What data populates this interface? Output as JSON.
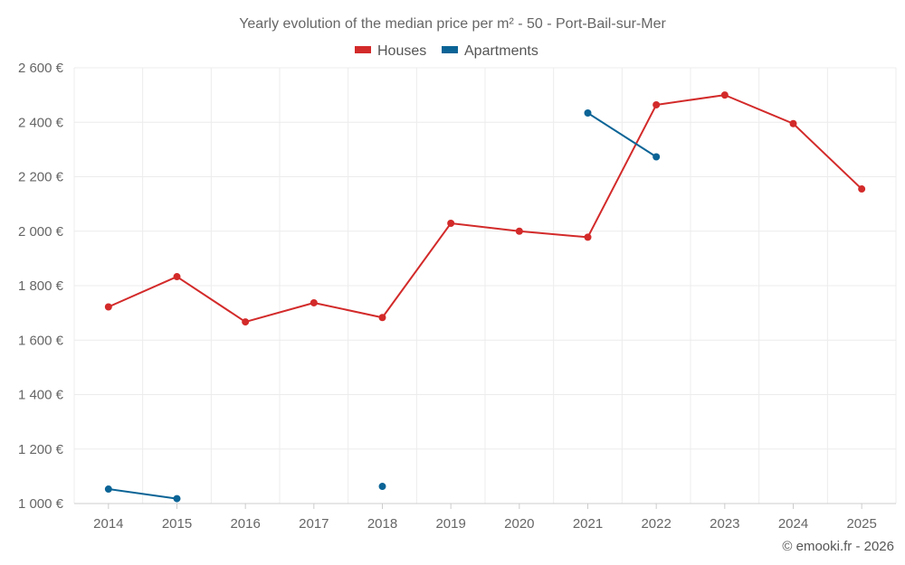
{
  "chart_data": {
    "type": "line",
    "title": "Yearly evolution of the median price per m² - 50 - Port-Bail-sur-Mer",
    "categories": [
      "2014",
      "2015",
      "2016",
      "2017",
      "2018",
      "2019",
      "2020",
      "2021",
      "2022",
      "2023",
      "2024",
      "2025"
    ],
    "ylim": [
      1000,
      2600
    ],
    "yticks": [
      1000,
      1200,
      1400,
      1600,
      1800,
      2000,
      2200,
      2400,
      2600
    ],
    "ytick_labels": [
      "1 000 €",
      "1 200 €",
      "1 400 €",
      "1 600 €",
      "1 800 €",
      "2 000 €",
      "2 200 €",
      "2 400 €",
      "2 600 €"
    ],
    "xlabel": "",
    "ylabel": "",
    "grid": true,
    "legend_position": "top-center",
    "series": [
      {
        "name": "Houses",
        "color": "#d32a2a",
        "values": [
          1722,
          1833,
          1667,
          1737,
          1683,
          2029,
          2000,
          1978,
          2464,
          2500,
          2395,
          2155
        ]
      },
      {
        "name": "Apartments",
        "color": "#0b6496",
        "values": [
          1053,
          1018,
          null,
          null,
          1063,
          null,
          null,
          2434,
          2273,
          null,
          null,
          null
        ]
      }
    ]
  },
  "credit": "© emooki.fr - 2026"
}
